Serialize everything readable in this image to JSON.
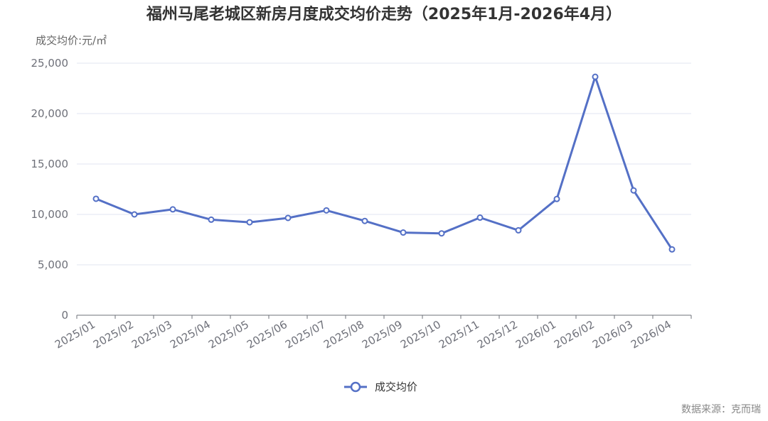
{
  "colors": {
    "series": "#5470c6",
    "grid": "#e0e6f1",
    "axis": "#6e7079",
    "title": "#333333"
  },
  "chart_data": {
    "type": "line",
    "title": "福州马尾老城区新房月度成交均价走势（2025年1月-2026年4月）",
    "unit_label": "成交均价:元/㎡",
    "ylim": [
      0,
      25000
    ],
    "y_ticks": [
      "0",
      "5,000",
      "10,000",
      "15,000",
      "20,000",
      "25,000"
    ],
    "y_tick_values": [
      0,
      5000,
      10000,
      15000,
      20000,
      25000
    ],
    "grid": true,
    "legend_position": "bottom-center",
    "categories": [
      "2025/01",
      "2025/02",
      "2025/03",
      "2025/04",
      "2025/05",
      "2025/06",
      "2025/07",
      "2025/08",
      "2025/09",
      "2025/10",
      "2025/11",
      "2025/12",
      "2026/01",
      "2026/02",
      "2026/03",
      "2026/04"
    ],
    "series": [
      {
        "name": "成交均价",
        "values": [
          11550,
          10000,
          10500,
          9480,
          9220,
          9650,
          10400,
          9350,
          8200,
          8120,
          9680,
          8420,
          11530,
          23650,
          12380,
          6530
        ]
      }
    ]
  },
  "source": "数据来源：克而瑞"
}
